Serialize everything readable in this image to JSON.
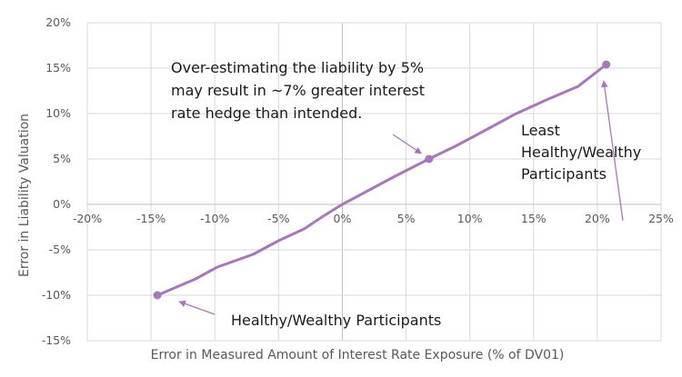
{
  "chart_data": {
    "type": "line",
    "title": "",
    "xlabel": "Error in Measured Amount of Interest Rate Exposure (% of DV01)",
    "ylabel": "Error in Liability Valuation",
    "xlim": [
      -0.2,
      0.25
    ],
    "ylim": [
      -0.15,
      0.2
    ],
    "x_ticks": [
      "-20%",
      "-15%",
      "-10%",
      "-5%",
      "0%",
      "5%",
      "10%",
      "15%",
      "20%",
      "25%"
    ],
    "y_ticks": [
      "20%",
      "15%",
      "10%",
      "5%",
      "0%",
      "-5%",
      "-10%",
      "-15%"
    ],
    "grid": true,
    "color": "#a678b9",
    "series": [
      {
        "x": [
          -0.145,
          -0.115,
          -0.098,
          -0.07,
          -0.05,
          -0.03,
          -0.015,
          0.0,
          0.02,
          0.04,
          0.068,
          0.09,
          0.11,
          0.135,
          0.16,
          0.185,
          0.207
        ],
        "y": [
          -0.1,
          -0.082,
          -0.069,
          -0.055,
          -0.04,
          -0.027,
          -0.013,
          0.0,
          0.015,
          0.03,
          0.05,
          0.065,
          0.08,
          0.099,
          0.115,
          0.13,
          0.154
        ]
      }
    ],
    "markers": [
      {
        "x": -0.145,
        "y": -0.1
      },
      {
        "x": 0.068,
        "y": 0.05
      },
      {
        "x": 0.207,
        "y": 0.154
      }
    ],
    "annotations": [
      {
        "lines": [
          "Over-estimating  the liability by 5%",
          "may result in ~7% greater interest",
          "rate hedge than intended."
        ],
        "arrow_to": {
          "x": 0.062,
          "y": 0.056
        }
      },
      {
        "lines": [
          "Least",
          "Healthy/Wealthy",
          "Participants"
        ],
        "arrow_to": {
          "x": 0.205,
          "y": 0.136
        }
      },
      {
        "lines": [
          "Healthy/Wealthy Participants"
        ],
        "arrow_to": {
          "x": -0.128,
          "y": -0.107
        }
      }
    ]
  }
}
